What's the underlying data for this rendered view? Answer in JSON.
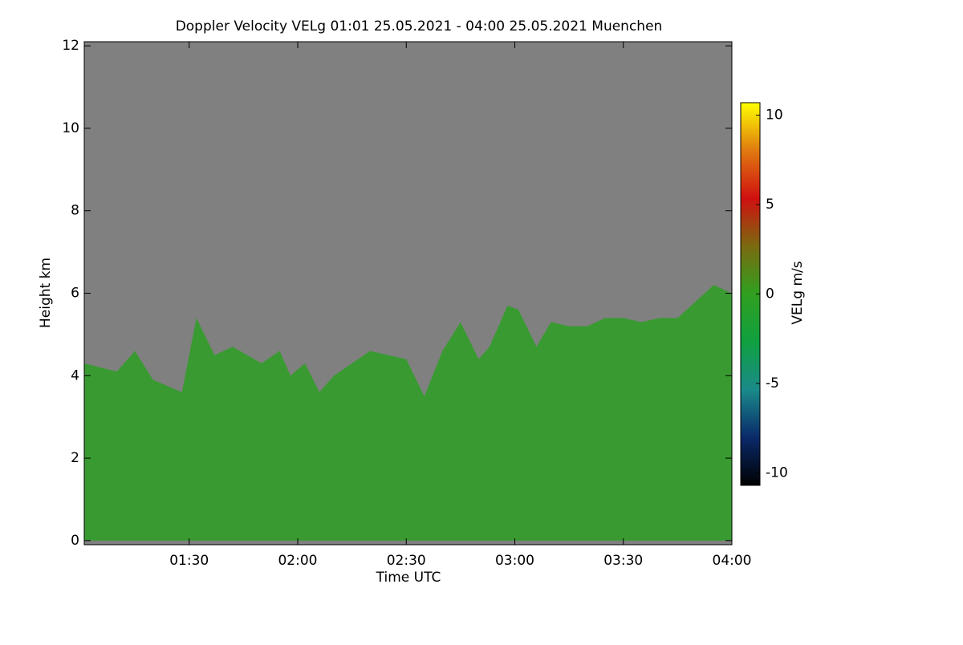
{
  "chart_data": {
    "type": "area",
    "title": "Doppler Velocity VELg   01:01 25.05.2021 - 04:00 25.05.2021 Muenchen",
    "xlabel": "Time UTC",
    "ylabel": "Height km",
    "colorbar_label": "VELg m/s",
    "x": [
      61,
      70,
      75,
      80,
      88,
      92,
      97,
      102,
      110,
      115,
      118,
      122,
      126,
      130,
      135,
      140,
      145,
      150,
      155,
      160,
      165,
      170,
      173,
      178,
      181,
      186,
      190,
      195,
      200,
      205,
      210,
      215,
      220,
      225,
      230,
      235,
      240
    ],
    "values": [
      4.3,
      4.1,
      4.6,
      3.9,
      3.6,
      5.4,
      4.5,
      4.7,
      4.3,
      4.6,
      4.0,
      4.3,
      3.6,
      4.0,
      4.3,
      4.6,
      4.5,
      4.4,
      3.5,
      4.6,
      5.3,
      4.4,
      4.7,
      5.7,
      5.6,
      4.7,
      5.3,
      5.2,
      5.2,
      5.4,
      5.4,
      5.3,
      5.4,
      5.4,
      5.8,
      6.2,
      6.0
    ],
    "color": "#3a9a32",
    "background": "#808080",
    "xlim": [
      61,
      240
    ],
    "xticks": [
      {
        "value": 90,
        "label": "01:30"
      },
      {
        "value": 120,
        "label": "02:00"
      },
      {
        "value": 150,
        "label": "02:30"
      },
      {
        "value": 180,
        "label": "03:00"
      },
      {
        "value": 210,
        "label": "03:30"
      },
      {
        "value": 240,
        "label": "04:00"
      }
    ],
    "ylim": [
      -0.1,
      12.1
    ],
    "yticks": [
      0,
      2,
      4,
      6,
      8,
      10,
      12
    ],
    "clim": [
      -10.7,
      10.7
    ],
    "cticks": [
      -10,
      -5,
      0,
      5,
      10
    ],
    "colormap": [
      "#000000",
      "#0a2a6a",
      "#1a8a8a",
      "#10a040",
      "#30a020",
      "#7a6a10",
      "#d01010",
      "#e07a10",
      "#ffff00"
    ]
  }
}
